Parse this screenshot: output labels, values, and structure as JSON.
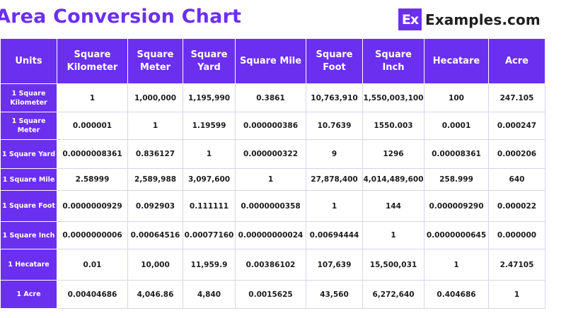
{
  "title": "Area Conversion Chart",
  "brand": {
    "logo": "Ex",
    "name": "Examples.com"
  },
  "table": {
    "headers": [
      "Units",
      "Square Kilometer",
      "Square Meter",
      "Square Yard",
      "Square Mile",
      "Square Foot",
      "Square Inch",
      "Hecatare",
      "Acre"
    ],
    "rows": [
      {
        "unit": "1 Square Kilometer",
        "values": [
          "1",
          "1,000,000",
          "1,195,990",
          "0.3861",
          "10,763,910",
          "1,550,003,100",
          "100",
          "247.105"
        ]
      },
      {
        "unit": "1 Square Meter",
        "values": [
          "0.000001",
          "1",
          "1.19599",
          "0.000000386",
          "10.7639",
          "1550.003",
          "0.0001",
          "0.000247"
        ]
      },
      {
        "unit": "1 Square Yard",
        "values": [
          "0.0000008361",
          "0.836127",
          "1",
          "0.000000322",
          "9",
          "1296",
          "0.00008361",
          "0.000206"
        ]
      },
      {
        "unit": "1 Square Mile",
        "values": [
          "2.58999",
          "2,589,988",
          "3,097,600",
          "1",
          "27,878,400",
          "4,014,489,600",
          "258.999",
          "640"
        ]
      },
      {
        "unit": "1 Square Foot",
        "values": [
          "0.0000000929",
          "0.092903",
          "0.111111",
          "0.0000000358",
          "1",
          "144",
          "0.000009290",
          "0.000022"
        ]
      },
      {
        "unit": "1 Square Inch",
        "values": [
          "0.0000000006",
          "0.00064516",
          "0.00077160",
          "0.00000000024",
          "0.00694444",
          "1",
          "0.0000000645",
          "0.000000"
        ]
      },
      {
        "unit": "1 Hecatare",
        "values": [
          "0.01",
          "10,000",
          "11,959.9",
          "0.00386102",
          "107,639",
          "15,500,031",
          "1",
          "2.47105"
        ]
      },
      {
        "unit": "1 Acre",
        "values": [
          "0.00404686",
          "4,046.86",
          "4,840",
          "0.0015625",
          "43,560",
          "6,272,640",
          "0.404686",
          "1"
        ]
      }
    ]
  },
  "colors": {
    "accent": "#6b2ff0",
    "text": "#1c1c1c",
    "header_text": "#ffffff"
  }
}
